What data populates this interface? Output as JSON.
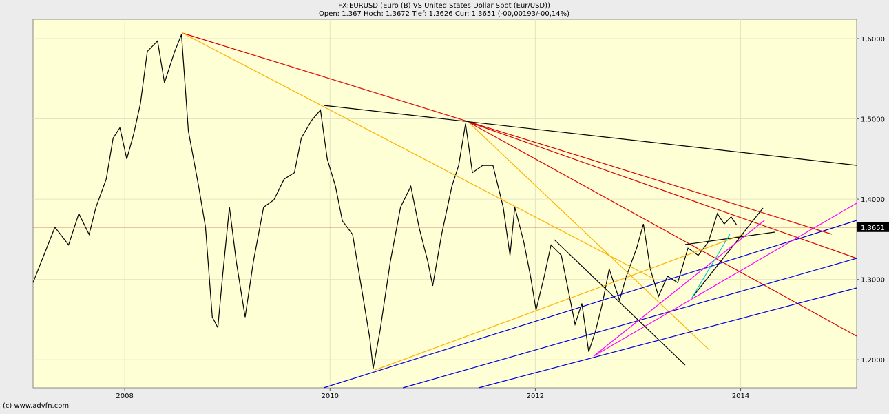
{
  "chart_data": {
    "type": "line",
    "title": "FX:EURUSD (Euro (B) VS United States Dollar Spot (Eur/USD))",
    "subtitle": "Open: 1.367 Hoch: 1.3672 Tief: 1.3626 Cur: 1.3651 (-00,00193/-00,14%)",
    "footer": "(c) www.advfn.com",
    "x": [
      2007.107,
      2007.187,
      2007.32,
      2007.453,
      2007.553,
      2007.653,
      2007.72,
      2007.82,
      2007.887,
      2007.953,
      2008.02,
      2008.087,
      2008.153,
      2008.22,
      2008.32,
      2008.387,
      2008.487,
      2008.553,
      2008.62,
      2008.72,
      2008.787,
      2008.853,
      2008.907,
      2008.953,
      2009.02,
      2009.087,
      2009.173,
      2009.253,
      2009.353,
      2009.453,
      2009.553,
      2009.653,
      2009.72,
      2009.82,
      2009.907,
      2009.973,
      2010.053,
      2010.12,
      2010.22,
      2010.32,
      2010.387,
      2010.42,
      2010.487,
      2010.587,
      2010.687,
      2010.787,
      2010.867,
      2010.953,
      2011.0,
      2011.087,
      2011.187,
      2011.253,
      2011.32,
      2011.387,
      2011.487,
      2011.587,
      2011.687,
      2011.753,
      2011.8,
      2011.887,
      2011.953,
      2012.007,
      2012.087,
      2012.153,
      2012.253,
      2012.32,
      2012.387,
      2012.453,
      2012.52,
      2012.587,
      2012.653,
      2012.72,
      2012.82,
      2012.887,
      2012.987,
      2013.053,
      2013.12,
      2013.2,
      2013.287,
      2013.387,
      2013.487,
      2013.587,
      2013.687,
      2013.773,
      2013.84,
      2013.907,
      2013.96
    ],
    "series": [
      {
        "name": "EURUSD",
        "color": "#000000",
        "values": [
          1.296,
          1.322,
          1.365,
          1.343,
          1.382,
          1.356,
          1.39,
          1.425,
          1.476,
          1.489,
          1.45,
          1.481,
          1.519,
          1.584,
          1.597,
          1.545,
          1.584,
          1.605,
          1.485,
          1.416,
          1.365,
          1.253,
          1.24,
          1.304,
          1.39,
          1.322,
          1.253,
          1.322,
          1.39,
          1.399,
          1.425,
          1.433,
          1.476,
          1.498,
          1.511,
          1.45,
          1.416,
          1.373,
          1.356,
          1.279,
          1.227,
          1.189,
          1.236,
          1.322,
          1.39,
          1.416,
          1.365,
          1.322,
          1.292,
          1.356,
          1.416,
          1.442,
          1.494,
          1.433,
          1.442,
          1.442,
          1.39,
          1.33,
          1.39,
          1.347,
          1.304,
          1.262,
          1.304,
          1.343,
          1.33,
          1.287,
          1.244,
          1.27,
          1.21,
          1.236,
          1.27,
          1.313,
          1.274,
          1.304,
          1.339,
          1.369,
          1.313,
          1.279,
          1.304,
          1.296,
          1.339,
          1.33,
          1.347,
          1.382,
          1.369,
          1.378,
          1.368
        ]
      }
    ],
    "current": {
      "value": 1.3651,
      "label": "1,3651",
      "color": "#cc0000"
    },
    "xlim": [
      2007.107,
      2015.13
    ],
    "ylim": [
      1.165,
      1.624
    ],
    "xticks": [
      2008,
      2010,
      2012,
      2014
    ],
    "yticks": [
      {
        "value": 1.2,
        "label": "1,2000"
      },
      {
        "value": 1.3,
        "label": "1,3000"
      },
      {
        "value": 1.4,
        "label": "1,4000"
      },
      {
        "value": 1.5,
        "label": "1,5000"
      },
      {
        "value": 1.6,
        "label": "1,6000"
      }
    ],
    "grid": true
  }
}
